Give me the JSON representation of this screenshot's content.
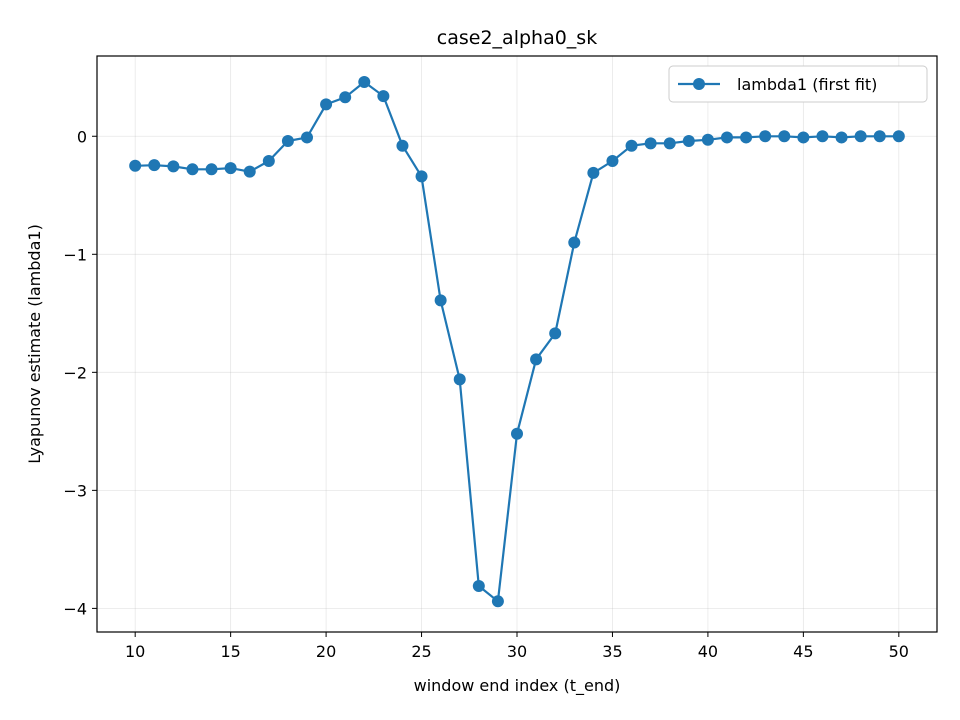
{
  "chart_data": {
    "type": "line",
    "title": "case2_alpha0_sk",
    "xlabel": "window end index (t_end)",
    "ylabel": "Lyapunov estimate (lambda1)",
    "xlim": [
      8,
      52
    ],
    "ylim": [
      -4.2,
      0.68
    ],
    "xticks": [
      10,
      15,
      20,
      25,
      30,
      35,
      40,
      45,
      50
    ],
    "xtick_labels": [
      "10",
      "15",
      "20",
      "25",
      "30",
      "35",
      "40",
      "45",
      "50"
    ],
    "yticks": [
      0,
      -1,
      -2,
      -3,
      -4
    ],
    "ytick_labels": [
      "0",
      "−1",
      "−2",
      "−3",
      "−4"
    ],
    "grid": true,
    "legend_position": "top-right",
    "series": [
      {
        "name": "lambda1 (first fit)",
        "color": "#1f77b4",
        "marker": "circle",
        "x": [
          10,
          11,
          12,
          13,
          14,
          15,
          16,
          17,
          18,
          19,
          20,
          21,
          22,
          23,
          24,
          25,
          26,
          27,
          28,
          29,
          30,
          31,
          32,
          33,
          34,
          35,
          36,
          37,
          38,
          39,
          40,
          41,
          42,
          43,
          44,
          45,
          46,
          47,
          48,
          49,
          50
        ],
        "y": [
          -0.25,
          -0.245,
          -0.255,
          -0.28,
          -0.28,
          -0.27,
          -0.3,
          -0.21,
          -0.04,
          -0.01,
          0.27,
          0.33,
          0.46,
          0.34,
          -0.08,
          -0.34,
          -1.39,
          -2.06,
          -3.81,
          -3.94,
          -2.52,
          -1.89,
          -1.67,
          -0.9,
          -0.31,
          -0.21,
          -0.08,
          -0.06,
          -0.06,
          -0.04,
          -0.03,
          -0.01,
          -0.01,
          0.0,
          0.0,
          -0.01,
          0.0,
          -0.01,
          0.0,
          0.0,
          0.0
        ]
      }
    ]
  }
}
